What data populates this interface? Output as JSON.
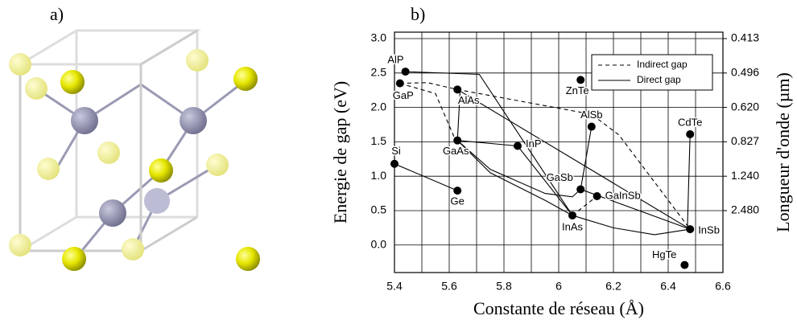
{
  "panel_labels": [
    "a)",
    "b)"
  ],
  "chart_data": {
    "type": "scatter",
    "x_label": "Constante de réseau (Å)",
    "y_label": "Energie de gap (eV)",
    "y2_label": "Longueur d'onde (µm)",
    "xlim": [
      5.4,
      6.6
    ],
    "xticks": [
      5.4,
      5.6,
      5.8,
      6.0,
      6.2,
      6.4,
      6.6
    ],
    "ylim": [
      -0.4,
      3.0
    ],
    "yticks": [
      {
        "value": 0,
        "label": "0.0"
      },
      0.5,
      {
        "value": 1,
        "label": "1.0"
      },
      1.5,
      {
        "value": 2,
        "label": "2.0"
      },
      2.5,
      {
        "value": 3,
        "label": "3.0"
      }
    ],
    "y2ticks": [
      0.413,
      0.496,
      {
        "value": 0.62,
        "label": "0.620"
      },
      0.827,
      {
        "value": 1.24,
        "label": "1.240"
      },
      {
        "value": 2.48,
        "label": "2.480"
      }
    ],
    "grid": true,
    "legend_position": "upper right",
    "legend": [
      {
        "name": "Indirect gap",
        "style": "dashed"
      },
      {
        "name": "Direct gap",
        "style": "solid"
      }
    ],
    "points": {
      "labels": [
        "AlP",
        "GaP",
        "AlAs",
        "ZnTe",
        "AlSb",
        "CdTe",
        "InP",
        "GaAs",
        "Si",
        "Ge",
        "GaSb",
        "GaInSb",
        "InAs",
        "InSb",
        "HgTe"
      ],
      "x": [
        5.44,
        5.42,
        5.63,
        6.08,
        6.12,
        6.48,
        5.85,
        5.63,
        5.4,
        5.63,
        6.08,
        6.14,
        6.05,
        6.48,
        6.46
      ],
      "y": [
        2.52,
        2.35,
        2.26,
        2.4,
        1.72,
        1.61,
        1.44,
        1.52,
        1.18,
        0.79,
        0.81,
        0.71,
        0.43,
        0.23,
        -0.29
      ],
      "color": "#000000"
    },
    "curves": [
      {
        "style": "solid",
        "x": [
          5.44,
          5.71,
          6.05
        ],
        "y": [
          2.52,
          2.48,
          0.43
        ]
      },
      {
        "style": "solid",
        "x": [
          5.63,
          6.48
        ],
        "y": [
          2.26,
          0.23
        ]
      },
      {
        "style": "solid",
        "x": [
          5.63,
          5.64
        ],
        "y": [
          1.52,
          2.26
        ]
      },
      {
        "style": "solid",
        "x": [
          5.63,
          5.85,
          6.05
        ],
        "y": [
          1.52,
          1.44,
          0.43
        ]
      },
      {
        "style": "solid",
        "x": [
          5.63,
          5.75,
          5.95,
          6.05
        ],
        "y": [
          1.52,
          1.05,
          0.65,
          0.43
        ]
      },
      {
        "style": "solid",
        "x": [
          5.63,
          5.75,
          5.95,
          6.05,
          6.08
        ],
        "y": [
          1.52,
          1.1,
          0.75,
          0.7,
          0.81
        ]
      },
      {
        "style": "solid",
        "x": [
          6.05,
          6.2,
          6.35,
          6.48
        ],
        "y": [
          0.43,
          0.25,
          0.15,
          0.23
        ]
      },
      {
        "style": "solid",
        "x": [
          6.08,
          6.48
        ],
        "y": [
          0.81,
          0.23
        ]
      },
      {
        "style": "solid",
        "x": [
          6.12,
          6.08
        ],
        "y": [
          1.72,
          0.81
        ]
      },
      {
        "style": "solid",
        "x": [
          6.48,
          6.47
        ],
        "y": [
          1.61,
          0.23
        ]
      },
      {
        "style": "solid",
        "x": [
          5.4,
          5.63
        ],
        "y": [
          1.18,
          0.79
        ]
      },
      {
        "style": "dashed",
        "x": [
          5.42,
          5.52,
          5.63,
          6.12,
          6.22,
          6.48
        ],
        "y": [
          2.35,
          2.36,
          2.26,
          1.9,
          1.6,
          0.23
        ]
      },
      {
        "style": "dashed",
        "x": [
          5.42,
          5.55,
          5.62
        ],
        "y": [
          2.35,
          2.2,
          1.55
        ]
      },
      {
        "style": "dashed",
        "x": [
          6.05,
          6.14
        ],
        "y": [
          0.43,
          0.71
        ]
      }
    ]
  }
}
